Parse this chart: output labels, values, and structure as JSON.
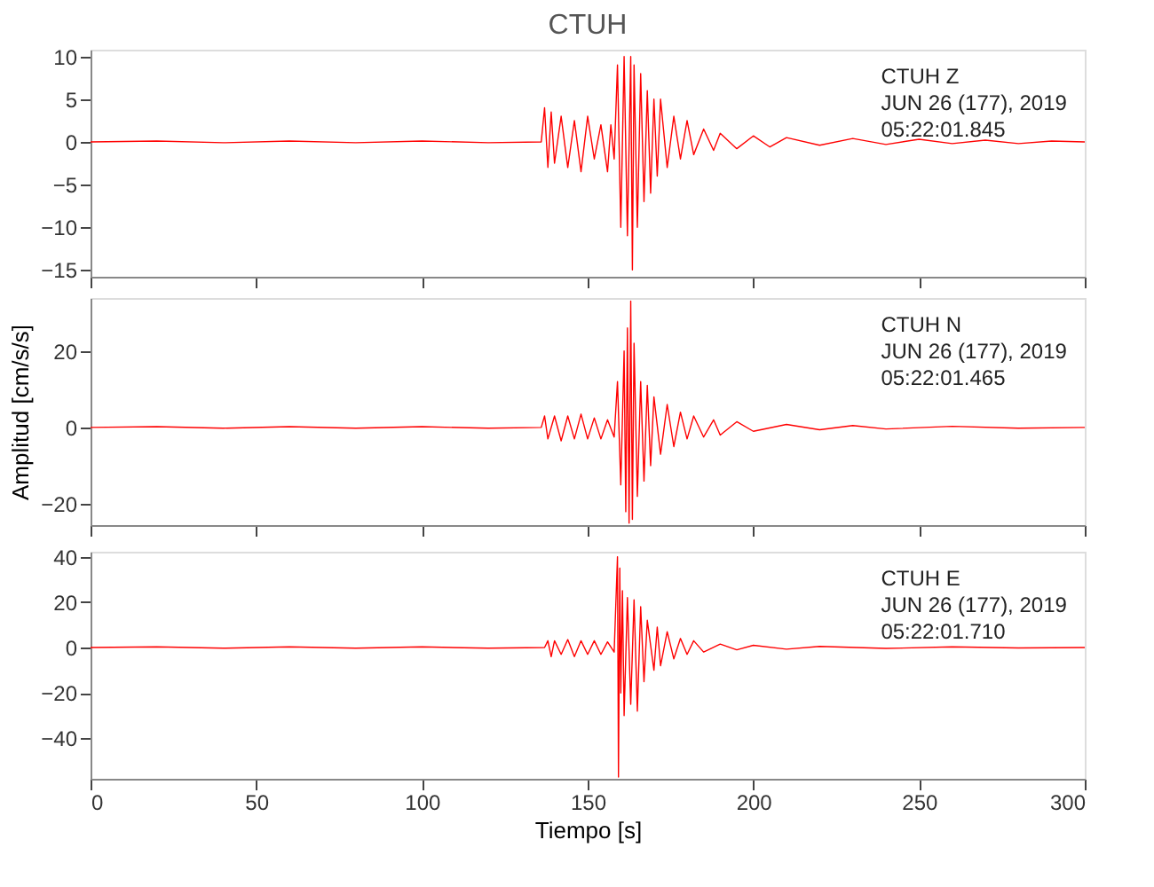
{
  "chart_data": [
    {
      "type": "line",
      "title": "CTUH",
      "xlim": [
        0,
        300
      ],
      "xticks": [
        0,
        50,
        100,
        150,
        200,
        250,
        300
      ],
      "ylim": [
        -15.8,
        10.8
      ],
      "yticks": [
        -15,
        -10,
        -5,
        0,
        5,
        10
      ],
      "tick_labels": "y",
      "grid": false,
      "annotations": [
        "CTUH   Z",
        "JUN 26 (177), 2019",
        "05:22:01.845"
      ],
      "series": [
        {
          "color": "#ff0000",
          "x": [
            0,
            20,
            40,
            60,
            80,
            100,
            120,
            136,
            137,
            138,
            139,
            140,
            142,
            144,
            146,
            148,
            150,
            152,
            154,
            156,
            157,
            158,
            159,
            160,
            161,
            162,
            163,
            163.5,
            164,
            165,
            166,
            167,
            168,
            169,
            170,
            171,
            172,
            174,
            176,
            178,
            180,
            182,
            185,
            188,
            190,
            195,
            200,
            205,
            210,
            220,
            230,
            240,
            250,
            260,
            270,
            280,
            290,
            300
          ],
          "values": [
            0,
            0.1,
            -0.1,
            0.1,
            -0.1,
            0.1,
            -0.1,
            0,
            4,
            -3,
            3.5,
            -2.5,
            3,
            -3,
            2.5,
            -3.5,
            3,
            -2,
            2,
            -3.5,
            2,
            -2,
            9,
            -10,
            10,
            -11,
            10,
            -15,
            9,
            -10,
            8,
            -7,
            6,
            -6,
            5,
            -4,
            5,
            -3,
            3,
            -2,
            2.5,
            -1.5,
            1.5,
            -1,
            1,
            -0.8,
            0.7,
            -0.6,
            0.5,
            -0.4,
            0.4,
            -0.3,
            0.3,
            -0.2,
            0.2,
            -0.2,
            0.1,
            0
          ]
        }
      ]
    },
    {
      "type": "line",
      "xlim": [
        0,
        300
      ],
      "xticks": [
        0,
        50,
        100,
        150,
        200,
        250,
        300
      ],
      "ylim": [
        -25.5,
        33.8
      ],
      "yticks": [
        -20,
        0,
        20
      ],
      "ylabel": "Amplitud [cm/s/s]",
      "tick_labels": "y",
      "grid": false,
      "annotations": [
        "CTUH   N",
        "JUN 26 (177), 2019",
        "05:22:01.465"
      ],
      "series": [
        {
          "color": "#ff0000",
          "x": [
            0,
            20,
            40,
            60,
            80,
            100,
            120,
            136,
            137,
            138,
            140,
            142,
            144,
            146,
            148,
            150,
            152,
            154,
            156,
            158,
            159,
            160,
            161,
            161.5,
            162,
            162.5,
            163,
            163.5,
            164,
            165,
            166,
            167,
            168,
            169,
            170,
            172,
            174,
            176,
            178,
            180,
            182,
            185,
            188,
            190,
            195,
            200,
            210,
            220,
            230,
            240,
            260,
            280,
            300
          ],
          "values": [
            0,
            0.2,
            -0.2,
            0.2,
            -0.2,
            0.2,
            -0.2,
            0,
            3,
            -3,
            3,
            -3.5,
            3,
            -3,
            3.5,
            -3,
            2.5,
            -3,
            2,
            -2.5,
            12,
            -15,
            20,
            -22,
            26,
            -25,
            33,
            -24,
            22,
            -18,
            12,
            -14,
            11,
            -10,
            8,
            -7,
            6,
            -5,
            4,
            -3,
            3,
            -2.5,
            2,
            -2,
            1.5,
            -1,
            0.8,
            -0.6,
            0.5,
            -0.4,
            0.3,
            -0.2,
            0
          ]
        }
      ]
    },
    {
      "type": "line",
      "xlim": [
        0,
        300
      ],
      "xticks": [
        0,
        50,
        100,
        150,
        200,
        250,
        300
      ],
      "ylim": [
        -57.8,
        42.2
      ],
      "yticks": [
        -40,
        -20,
        0,
        20,
        40
      ],
      "xlabel": "Tiempo [s]",
      "grid": false,
      "annotations": [
        "CTUH   E",
        "JUN 26 (177), 2019",
        "05:22:01.710"
      ],
      "series": [
        {
          "color": "#ff0000",
          "x": [
            0,
            20,
            40,
            60,
            80,
            100,
            120,
            137,
            138,
            139,
            140,
            142,
            144,
            146,
            148,
            150,
            152,
            154,
            156,
            158,
            159,
            159.3,
            159.7,
            160,
            160.5,
            161,
            162,
            163,
            164,
            165,
            166,
            167,
            168,
            170,
            171,
            172,
            174,
            176,
            178,
            180,
            182,
            185,
            190,
            195,
            200,
            210,
            220,
            240,
            260,
            280,
            300
          ],
          "values": [
            0,
            0.3,
            -0.3,
            0.3,
            -0.3,
            0.3,
            -0.3,
            0,
            3,
            -4,
            3,
            -3,
            3.5,
            -4,
            3,
            -3,
            3,
            -3,
            2.5,
            -2,
            40,
            -57,
            35,
            -20,
            25,
            -30,
            22,
            -25,
            21,
            -28,
            18,
            -15,
            12,
            -10,
            9,
            -8,
            7,
            -5,
            4,
            -3,
            3,
            -2,
            1.5,
            -1,
            1,
            -0.7,
            0.5,
            -0.4,
            0.3,
            -0.2,
            0
          ]
        }
      ]
    }
  ]
}
